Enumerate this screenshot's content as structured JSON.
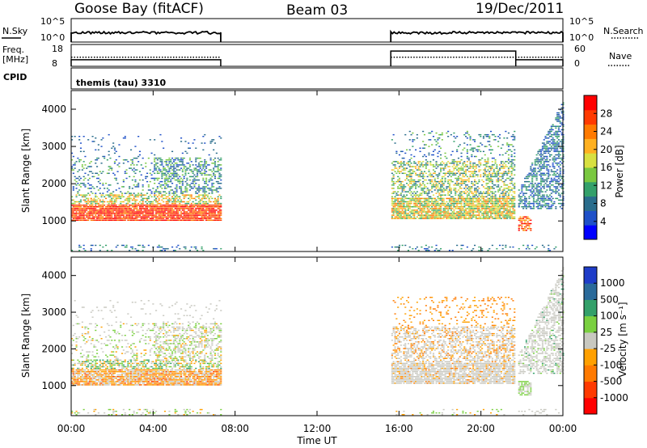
{
  "header": {
    "station": "Goose Bay (fitACF)",
    "beam": "Beam 03",
    "date": "19/Dec/2011"
  },
  "top_panels": {
    "nsky_label": "N.Sky",
    "nsky_ticks": [
      "10^5",
      "10^0"
    ],
    "nsearch_label": "N.Search",
    "nsearch_ticks": [
      "10^5",
      "10^0"
    ],
    "freq_label_1": "Freq.",
    "freq_label_2": "[MHz]",
    "freq_ticks": [
      "18",
      "8"
    ],
    "nave_label": "Nave",
    "nave_ticks": [
      "60",
      "0"
    ],
    "cpid_label": "CPID",
    "cpid_value": "themis (tau) 3310"
  },
  "power_colorbar": {
    "label": "Power [dB]",
    "ticks": [
      "28",
      "24",
      "20",
      "16",
      "12",
      "8",
      "4"
    ],
    "colors": [
      "#0000ff",
      "#1e50c8",
      "#2a6d8c",
      "#34a06a",
      "#7ac840",
      "#d8e040",
      "#ffb020",
      "#ff7a00",
      "#ff3a00",
      "#ff0000"
    ]
  },
  "velocity_colorbar": {
    "label": "Velocity [m s⁻¹]",
    "ticks": [
      "1000",
      "500",
      "100",
      "25",
      "-25",
      "-100",
      "-500",
      "-1000"
    ],
    "colors": [
      "#1e3cc8",
      "#2a6a9a",
      "#33a06a",
      "#7ad040",
      "#c8c8c0",
      "#ffa000",
      "#ff7a00",
      "#ff3a00",
      "#ff0000"
    ]
  },
  "axes": {
    "ylabel": "Slant Range [km]",
    "yticks": [
      "4000",
      "3000",
      "2000",
      "1000"
    ],
    "xlabel": "Time UT",
    "xticks": [
      "00:00",
      "04:00",
      "08:00",
      "12:00",
      "16:00",
      "20:00",
      "00:00"
    ]
  },
  "chart_data": {
    "type": "heatmap",
    "title": "Goose Bay (fitACF)",
    "beam": "Beam 03",
    "date": "19/Dec/2011",
    "xlabel": "Time UT",
    "ylabel": "Slant Range [km]",
    "xlim_hours": [
      0,
      24
    ],
    "ylim_km": [
      180,
      4500
    ],
    "data_blocks_hours": [
      [
        0.0,
        7.3
      ],
      [
        15.6,
        24.0
      ]
    ],
    "panels": [
      {
        "name": "Power",
        "units": "dB",
        "colorbar_ticks": [
          4,
          8,
          12,
          16,
          20,
          24,
          28
        ],
        "features": [
          {
            "t": [
              0.2,
              7.2
            ],
            "range_km": [
              950,
              1400
            ],
            "value_dB": 28
          },
          {
            "t": [
              0.2,
              7.2
            ],
            "range_km": [
              1400,
              2600
            ],
            "value_dB": 10
          },
          {
            "t": [
              15.6,
              21.5
            ],
            "range_km": [
              1000,
              2600
            ],
            "value_dB": 16
          },
          {
            "t": [
              21.8,
              24.0
            ],
            "range_km": [
              1300,
              4200
            ],
            "value_dB": 8
          }
        ]
      },
      {
        "name": "Velocity",
        "units": "m s⁻¹",
        "colorbar_ticks": [
          1000,
          500,
          100,
          25,
          -25,
          -100,
          -500,
          -1000
        ],
        "features": [
          {
            "t": [
              0.2,
              7.2
            ],
            "range_km": [
              950,
              1400
            ],
            "value_ms": -150
          },
          {
            "t": [
              0.2,
              7.2
            ],
            "range_km": [
              1400,
              2600
            ],
            "value_ms": 0
          },
          {
            "t": [
              15.6,
              21.5
            ],
            "range_km": [
              1000,
              2300
            ],
            "value_ms": 0
          },
          {
            "t": [
              21.8,
              24.0
            ],
            "range_km": [
              1300,
              3500
            ],
            "value_ms": 0
          }
        ]
      }
    ],
    "nsky_nsearch": "present during data blocks",
    "frequency_MHz": [
      [
        0.0,
        7.3,
        11
      ],
      [
        15.6,
        21.7,
        15
      ],
      [
        21.7,
        24.0,
        11
      ]
    ],
    "nave": [
      [
        0.0,
        7.3,
        25
      ],
      [
        15.6,
        24.0,
        25
      ]
    ],
    "cpid": "themis (tau) 3310"
  }
}
